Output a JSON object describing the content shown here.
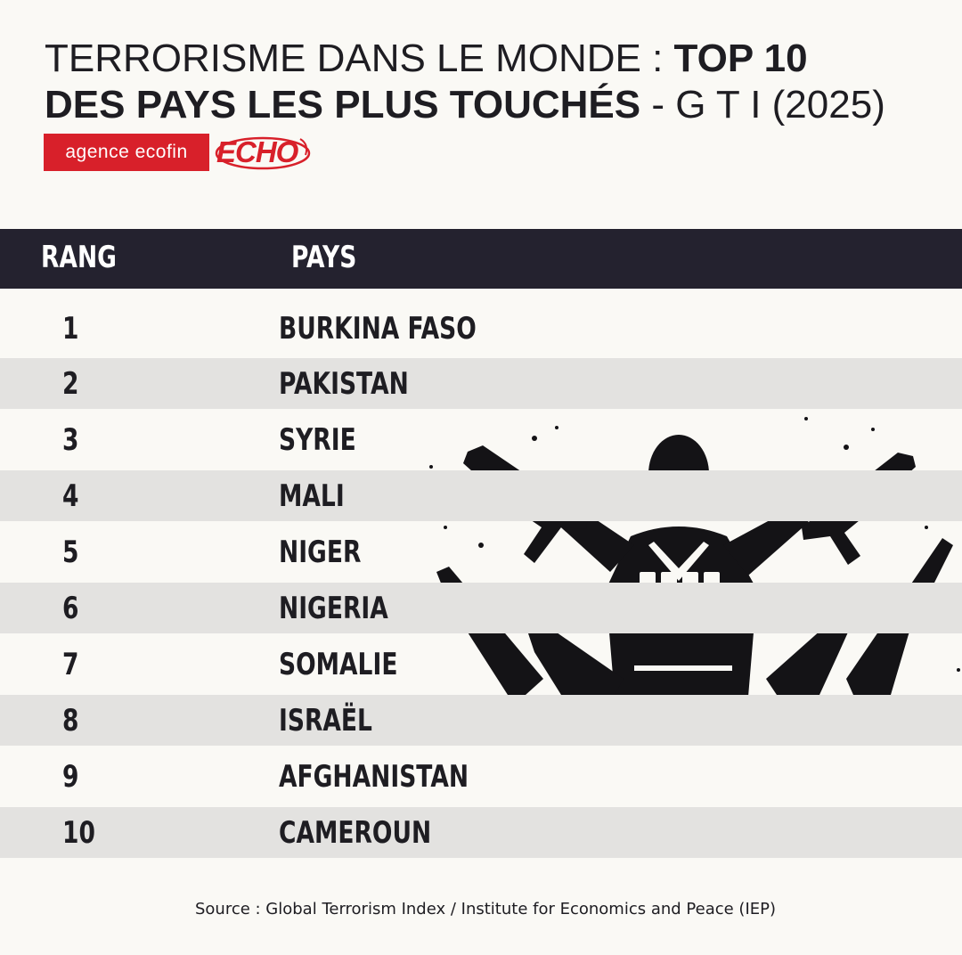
{
  "title": {
    "part1": "TERRORISME DANS LE MONDE : ",
    "part2": "TOP 10",
    "part3": "DES PAYS LES PLUS TOUCHÉS",
    "part4": " - G T I (2025)"
  },
  "logos": {
    "agency": "agence ecofin",
    "echo": "ECHO"
  },
  "table": {
    "header": {
      "rank": "RANG",
      "country": "PAYS"
    },
    "rows": [
      {
        "rank": "1",
        "country": "BURKINA FASO"
      },
      {
        "rank": "2",
        "country": "PAKISTAN"
      },
      {
        "rank": "3",
        "country": "SYRIE"
      },
      {
        "rank": "4",
        "country": "MALI"
      },
      {
        "rank": "5",
        "country": "NIGER"
      },
      {
        "rank": "6",
        "country": "NIGERIA"
      },
      {
        "rank": "7",
        "country": "SOMALIE"
      },
      {
        "rank": "8",
        "country": "ISRAËL"
      },
      {
        "rank": "9",
        "country": "AFGHANISTAN"
      },
      {
        "rank": "10",
        "country": "CAMEROUN"
      }
    ]
  },
  "source": "Source : Global Terrorism Index / Institute for Economics and Peace (IEP)",
  "colors": {
    "background": "#faf9f5",
    "header": "#24222f",
    "stripe": "#e3e2e0",
    "brand_red": "#d8202a",
    "text": "#1e1d22"
  },
  "illustration": "armed-masked-figure-silhouette"
}
